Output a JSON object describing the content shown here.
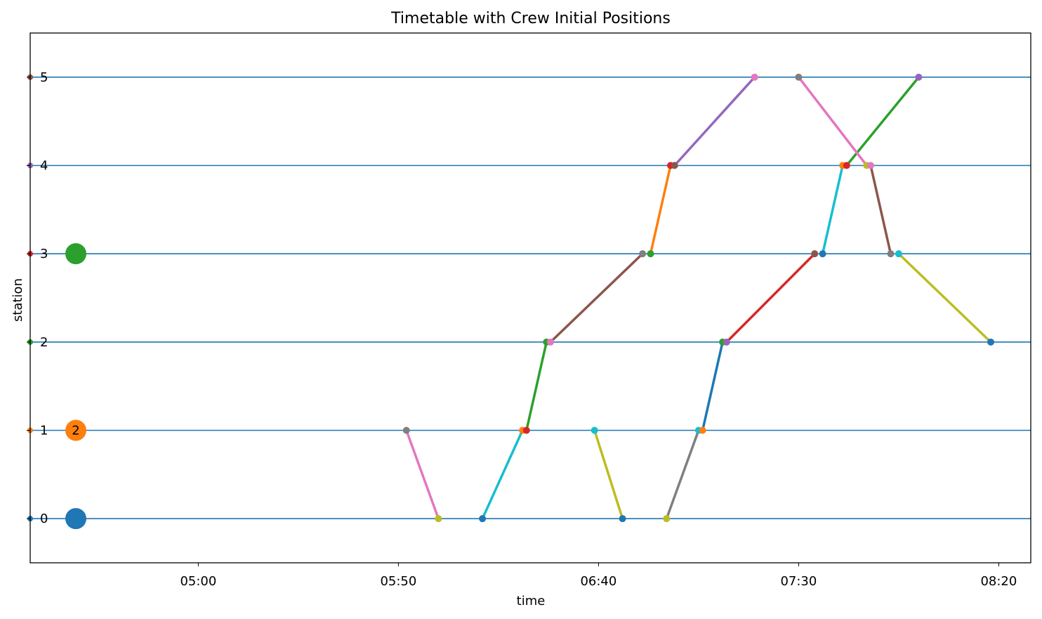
{
  "chart_data": {
    "type": "line",
    "title": "Timetable with Crew Initial Positions",
    "xlabel": "time",
    "ylabel": "station",
    "x_ticks": [
      "05:00",
      "05:50",
      "06:40",
      "07:30",
      "08:20"
    ],
    "y_ticks": [
      "0",
      "1",
      "2",
      "3",
      "4",
      "5"
    ],
    "xlim": [
      "04:18",
      "08:28"
    ],
    "ylim": [
      -0.5,
      5.5
    ],
    "grid": "horizontal lines at stations",
    "legend": "none",
    "station_line_color": "#1f77b4",
    "segments": [
      {
        "color": "#e377c2",
        "from": [
          "05:52",
          1
        ],
        "to": [
          "06:00",
          0
        ]
      },
      {
        "color": "#17becf",
        "from": [
          "06:11",
          0
        ],
        "to": [
          "06:21",
          1
        ]
      },
      {
        "color": "#bcbd22",
        "from": [
          "06:39",
          1
        ],
        "to": [
          "06:46",
          0
        ]
      },
      {
        "color": "#2ca02c",
        "from": [
          "06:22",
          1
        ],
        "to": [
          "06:27",
          2
        ]
      },
      {
        "color": "#8c564b",
        "from": [
          "06:28",
          2
        ],
        "to": [
          "06:51",
          3
        ]
      },
      {
        "color": "#ff7f0e",
        "from": [
          "06:53",
          3
        ],
        "to": [
          "06:58",
          4
        ]
      },
      {
        "color": "#9467bd",
        "from": [
          "06:59",
          4
        ],
        "to": [
          "07:19",
          5
        ]
      },
      {
        "color": "#7f7f7f",
        "from": [
          "06:57",
          0
        ],
        "to": [
          "07:05",
          1
        ]
      },
      {
        "color": "#1f77b4",
        "from": [
          "07:06",
          1
        ],
        "to": [
          "07:11",
          2
        ]
      },
      {
        "color": "#d62728",
        "from": [
          "07:12",
          2
        ],
        "to": [
          "07:34",
          3
        ]
      },
      {
        "color": "#17becf",
        "from": [
          "07:36",
          3
        ],
        "to": [
          "07:41",
          4
        ]
      },
      {
        "color": "#2ca02c",
        "from": [
          "07:42",
          4
        ],
        "to": [
          "08:00",
          5
        ]
      },
      {
        "color": "#e377c2",
        "from": [
          "07:30",
          5
        ],
        "to": [
          "07:47",
          4
        ]
      },
      {
        "color": "#8c564b",
        "from": [
          "07:48",
          4
        ],
        "to": [
          "07:53",
          3
        ]
      },
      {
        "color": "#bcbd22",
        "from": [
          "07:55",
          3
        ],
        "to": [
          "08:18",
          2
        ]
      }
    ],
    "stop_markers": [
      {
        "color": "#7f7f7f",
        "t": "05:52",
        "s": 1
      },
      {
        "color": "#bcbd22",
        "t": "06:00",
        "s": 0
      },
      {
        "color": "#1f77b4",
        "t": "06:11",
        "s": 0
      },
      {
        "color": "#ff7f0e",
        "t": "06:21",
        "s": 1
      },
      {
        "color": "#d62728",
        "t": "06:22",
        "s": 1
      },
      {
        "color": "#2ca02c",
        "t": "06:27",
        "s": 2
      },
      {
        "color": "#e377c2",
        "t": "06:28",
        "s": 2
      },
      {
        "color": "#17becf",
        "t": "06:39",
        "s": 1
      },
      {
        "color": "#1f77b4",
        "t": "06:46",
        "s": 0
      },
      {
        "color": "#7f7f7f",
        "t": "06:51",
        "s": 3
      },
      {
        "color": "#2ca02c",
        "t": "06:53",
        "s": 3
      },
      {
        "color": "#bcbd22",
        "t": "06:57",
        "s": 0
      },
      {
        "color": "#d62728",
        "t": "06:58",
        "s": 4
      },
      {
        "color": "#8c564b",
        "t": "06:59",
        "s": 4
      },
      {
        "color": "#17becf",
        "t": "07:05",
        "s": 1
      },
      {
        "color": "#ff7f0e",
        "t": "07:06",
        "s": 1
      },
      {
        "color": "#2ca02c",
        "t": "07:11",
        "s": 2
      },
      {
        "color": "#9467bd",
        "t": "07:12",
        "s": 2
      },
      {
        "color": "#e377c2",
        "t": "07:19",
        "s": 5
      },
      {
        "color": "#7f7f7f",
        "t": "07:30",
        "s": 5
      },
      {
        "color": "#8c564b",
        "t": "07:34",
        "s": 3
      },
      {
        "color": "#1f77b4",
        "t": "07:36",
        "s": 3
      },
      {
        "color": "#ff7f0e",
        "t": "07:41",
        "s": 4
      },
      {
        "color": "#d62728",
        "t": "07:42",
        "s": 4
      },
      {
        "color": "#bcbd22",
        "t": "07:47",
        "s": 4
      },
      {
        "color": "#e377c2",
        "t": "07:48",
        "s": 4
      },
      {
        "color": "#7f7f7f",
        "t": "07:53",
        "s": 3
      },
      {
        "color": "#17becf",
        "t": "07:55",
        "s": 3
      },
      {
        "color": "#9467bd",
        "t": "08:00",
        "s": 5
      },
      {
        "color": "#1f77b4",
        "t": "08:18",
        "s": 2
      }
    ],
    "axis_station_markers": [
      {
        "s": 0,
        "color": "#1f77b4"
      },
      {
        "s": 1,
        "color": "#ff7f0e"
      },
      {
        "s": 2,
        "color": "#2ca02c"
      },
      {
        "s": 3,
        "color": "#d62728"
      },
      {
        "s": 4,
        "color": "#9467bd"
      },
      {
        "s": 5,
        "color": "#8c564b"
      }
    ],
    "crew_initial_positions": [
      {
        "station": 0,
        "color": "#1f77b4",
        "label": ""
      },
      {
        "station": 1,
        "color": "#ff7f0e",
        "label": "2"
      },
      {
        "station": 3,
        "color": "#2ca02c",
        "label": ""
      }
    ]
  }
}
